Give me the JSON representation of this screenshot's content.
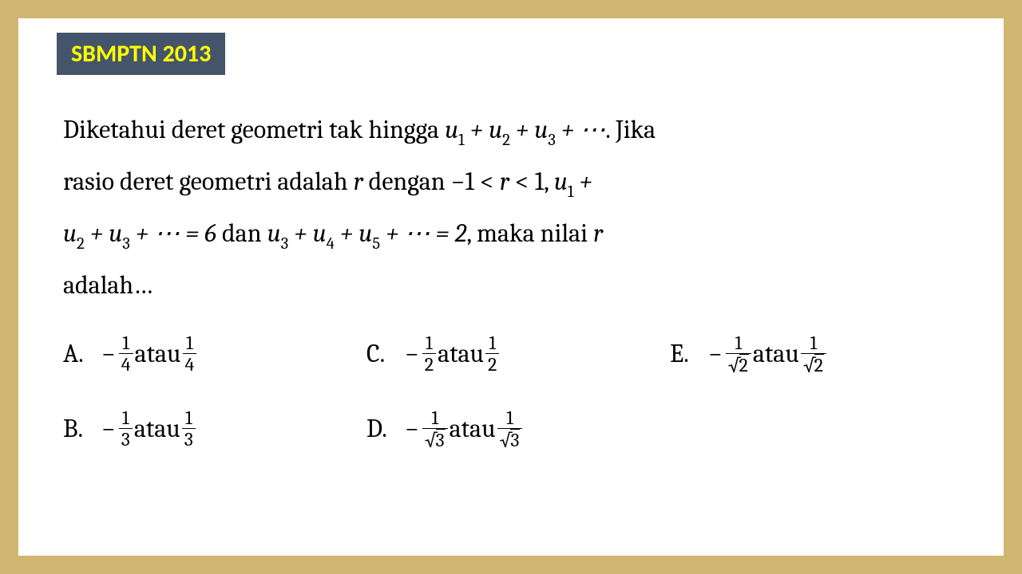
{
  "badge": {
    "text": "SBMPTN 2013",
    "bg": "#44546a",
    "fg": "#ffff00"
  },
  "card_bg": "#ffffff",
  "page_bg": "#d2b571",
  "text_color": "#000000",
  "question": {
    "line1_a": "Diketahui deret geometri tak hingga ",
    "line1_b": ". Jika",
    "series1": "u₁ + u₂ + u₃ + ⋯",
    "line2": "rasio deret geometri adalah ",
    "r": "r",
    "line2b": " dengan −1 < ",
    "line2c": " < 1, ",
    "sum_expr": "u₁ + u₂ + u₃ + ⋯ = 6",
    "dan": " dan ",
    "sum_expr2": "u₃ + u₄ + u₅ + ⋯ = 2",
    "line3b": ", maka nilai ",
    "line4": "adalah…"
  },
  "options": {
    "A": {
      "label": "A.",
      "neg_num": "1",
      "neg_den": "4",
      "atau": " atau ",
      "pos_num": "1",
      "pos_den": "4",
      "sqrt": false
    },
    "B": {
      "label": "B.",
      "neg_num": "1",
      "neg_den": "3",
      "atau": " atau ",
      "pos_num": "1",
      "pos_den": "3",
      "sqrt": false
    },
    "C": {
      "label": "C.",
      "neg_num": "1",
      "neg_den": "2",
      "atau": " atau ",
      "pos_num": "1",
      "pos_den": "2",
      "sqrt": false
    },
    "D": {
      "label": "D.",
      "neg_num": "1",
      "neg_den": "3",
      "atau": " atau ",
      "pos_num": "1",
      "pos_den": "3",
      "sqrt": true
    },
    "E": {
      "label": "E.",
      "neg_num": "1",
      "neg_den": "2",
      "atau": " atau ",
      "pos_num": "1",
      "pos_den": "2",
      "sqrt": true
    }
  }
}
